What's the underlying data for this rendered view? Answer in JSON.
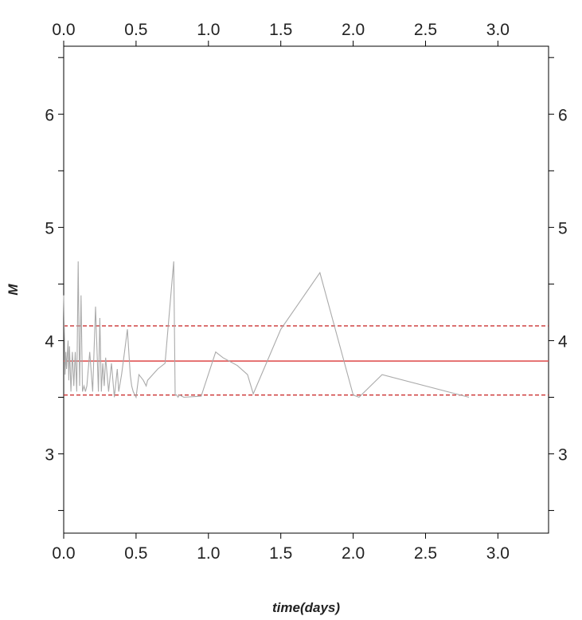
{
  "chart_data": {
    "type": "line",
    "title": "",
    "xlabel": "time(days)",
    "ylabel": "M",
    "xlim": [
      0,
      3.35
    ],
    "ylim": [
      2.3,
      6.6
    ],
    "x_ticks": [
      0.0,
      0.5,
      1.0,
      1.5,
      2.0,
      2.5,
      3.0
    ],
    "x_tick_labels": [
      "0.0",
      "0.5",
      "1.0",
      "1.5",
      "2.0",
      "2.5",
      "3.0"
    ],
    "y_ticks": [
      2.5,
      3,
      3.5,
      4,
      4.5,
      5,
      5.5,
      6,
      6.5
    ],
    "y_tick_labels": [
      "3",
      "4",
      "5",
      "6"
    ],
    "y_labeled_ticks": [
      3,
      4,
      5,
      6
    ],
    "ticks_on_all_sides": true,
    "grid": false,
    "series": [
      {
        "color": "#aaaaaa",
        "x": [
          0.0,
          0.01,
          0.015,
          0.02,
          0.03,
          0.035,
          0.04,
          0.05,
          0.06,
          0.07,
          0.08,
          0.09,
          0.1,
          0.11,
          0.12,
          0.13,
          0.14,
          0.15,
          0.16,
          0.18,
          0.2,
          0.22,
          0.24,
          0.25,
          0.26,
          0.27,
          0.28,
          0.29,
          0.31,
          0.33,
          0.35,
          0.37,
          0.38,
          0.4,
          0.42,
          0.44,
          0.46,
          0.47,
          0.48,
          0.5,
          0.52,
          0.55,
          0.57,
          0.58,
          0.65,
          0.7,
          0.76,
          0.77,
          0.78,
          0.79,
          0.8,
          0.83,
          0.95,
          1.05,
          1.1,
          1.2,
          1.27,
          1.31,
          1.5,
          1.77,
          2.0,
          2.04,
          2.2,
          2.8
        ],
        "y": [
          4.4,
          3.7,
          3.9,
          3.75,
          4.0,
          3.65,
          3.95,
          3.55,
          3.9,
          3.6,
          3.9,
          3.55,
          4.7,
          3.6,
          4.4,
          3.55,
          3.6,
          3.55,
          3.6,
          3.9,
          3.55,
          4.3,
          3.55,
          4.2,
          3.55,
          3.8,
          3.6,
          3.85,
          3.55,
          3.8,
          3.5,
          3.75,
          3.55,
          3.7,
          3.9,
          4.1,
          3.7,
          3.6,
          3.55,
          3.5,
          3.7,
          3.65,
          3.6,
          3.65,
          3.75,
          3.8,
          4.7,
          3.52,
          3.52,
          3.5,
          3.52,
          3.5,
          3.51,
          3.9,
          3.85,
          3.78,
          3.7,
          3.53,
          4.1,
          4.6,
          3.52,
          3.5,
          3.7,
          3.5
        ]
      }
    ],
    "reference_lines": [
      {
        "y": 3.82,
        "style": "solid",
        "color": "#e05555"
      },
      {
        "y": 4.13,
        "style": "dashed",
        "color": "#cc3333"
      },
      {
        "y": 3.52,
        "style": "dashed",
        "color": "#cc3333"
      }
    ]
  }
}
